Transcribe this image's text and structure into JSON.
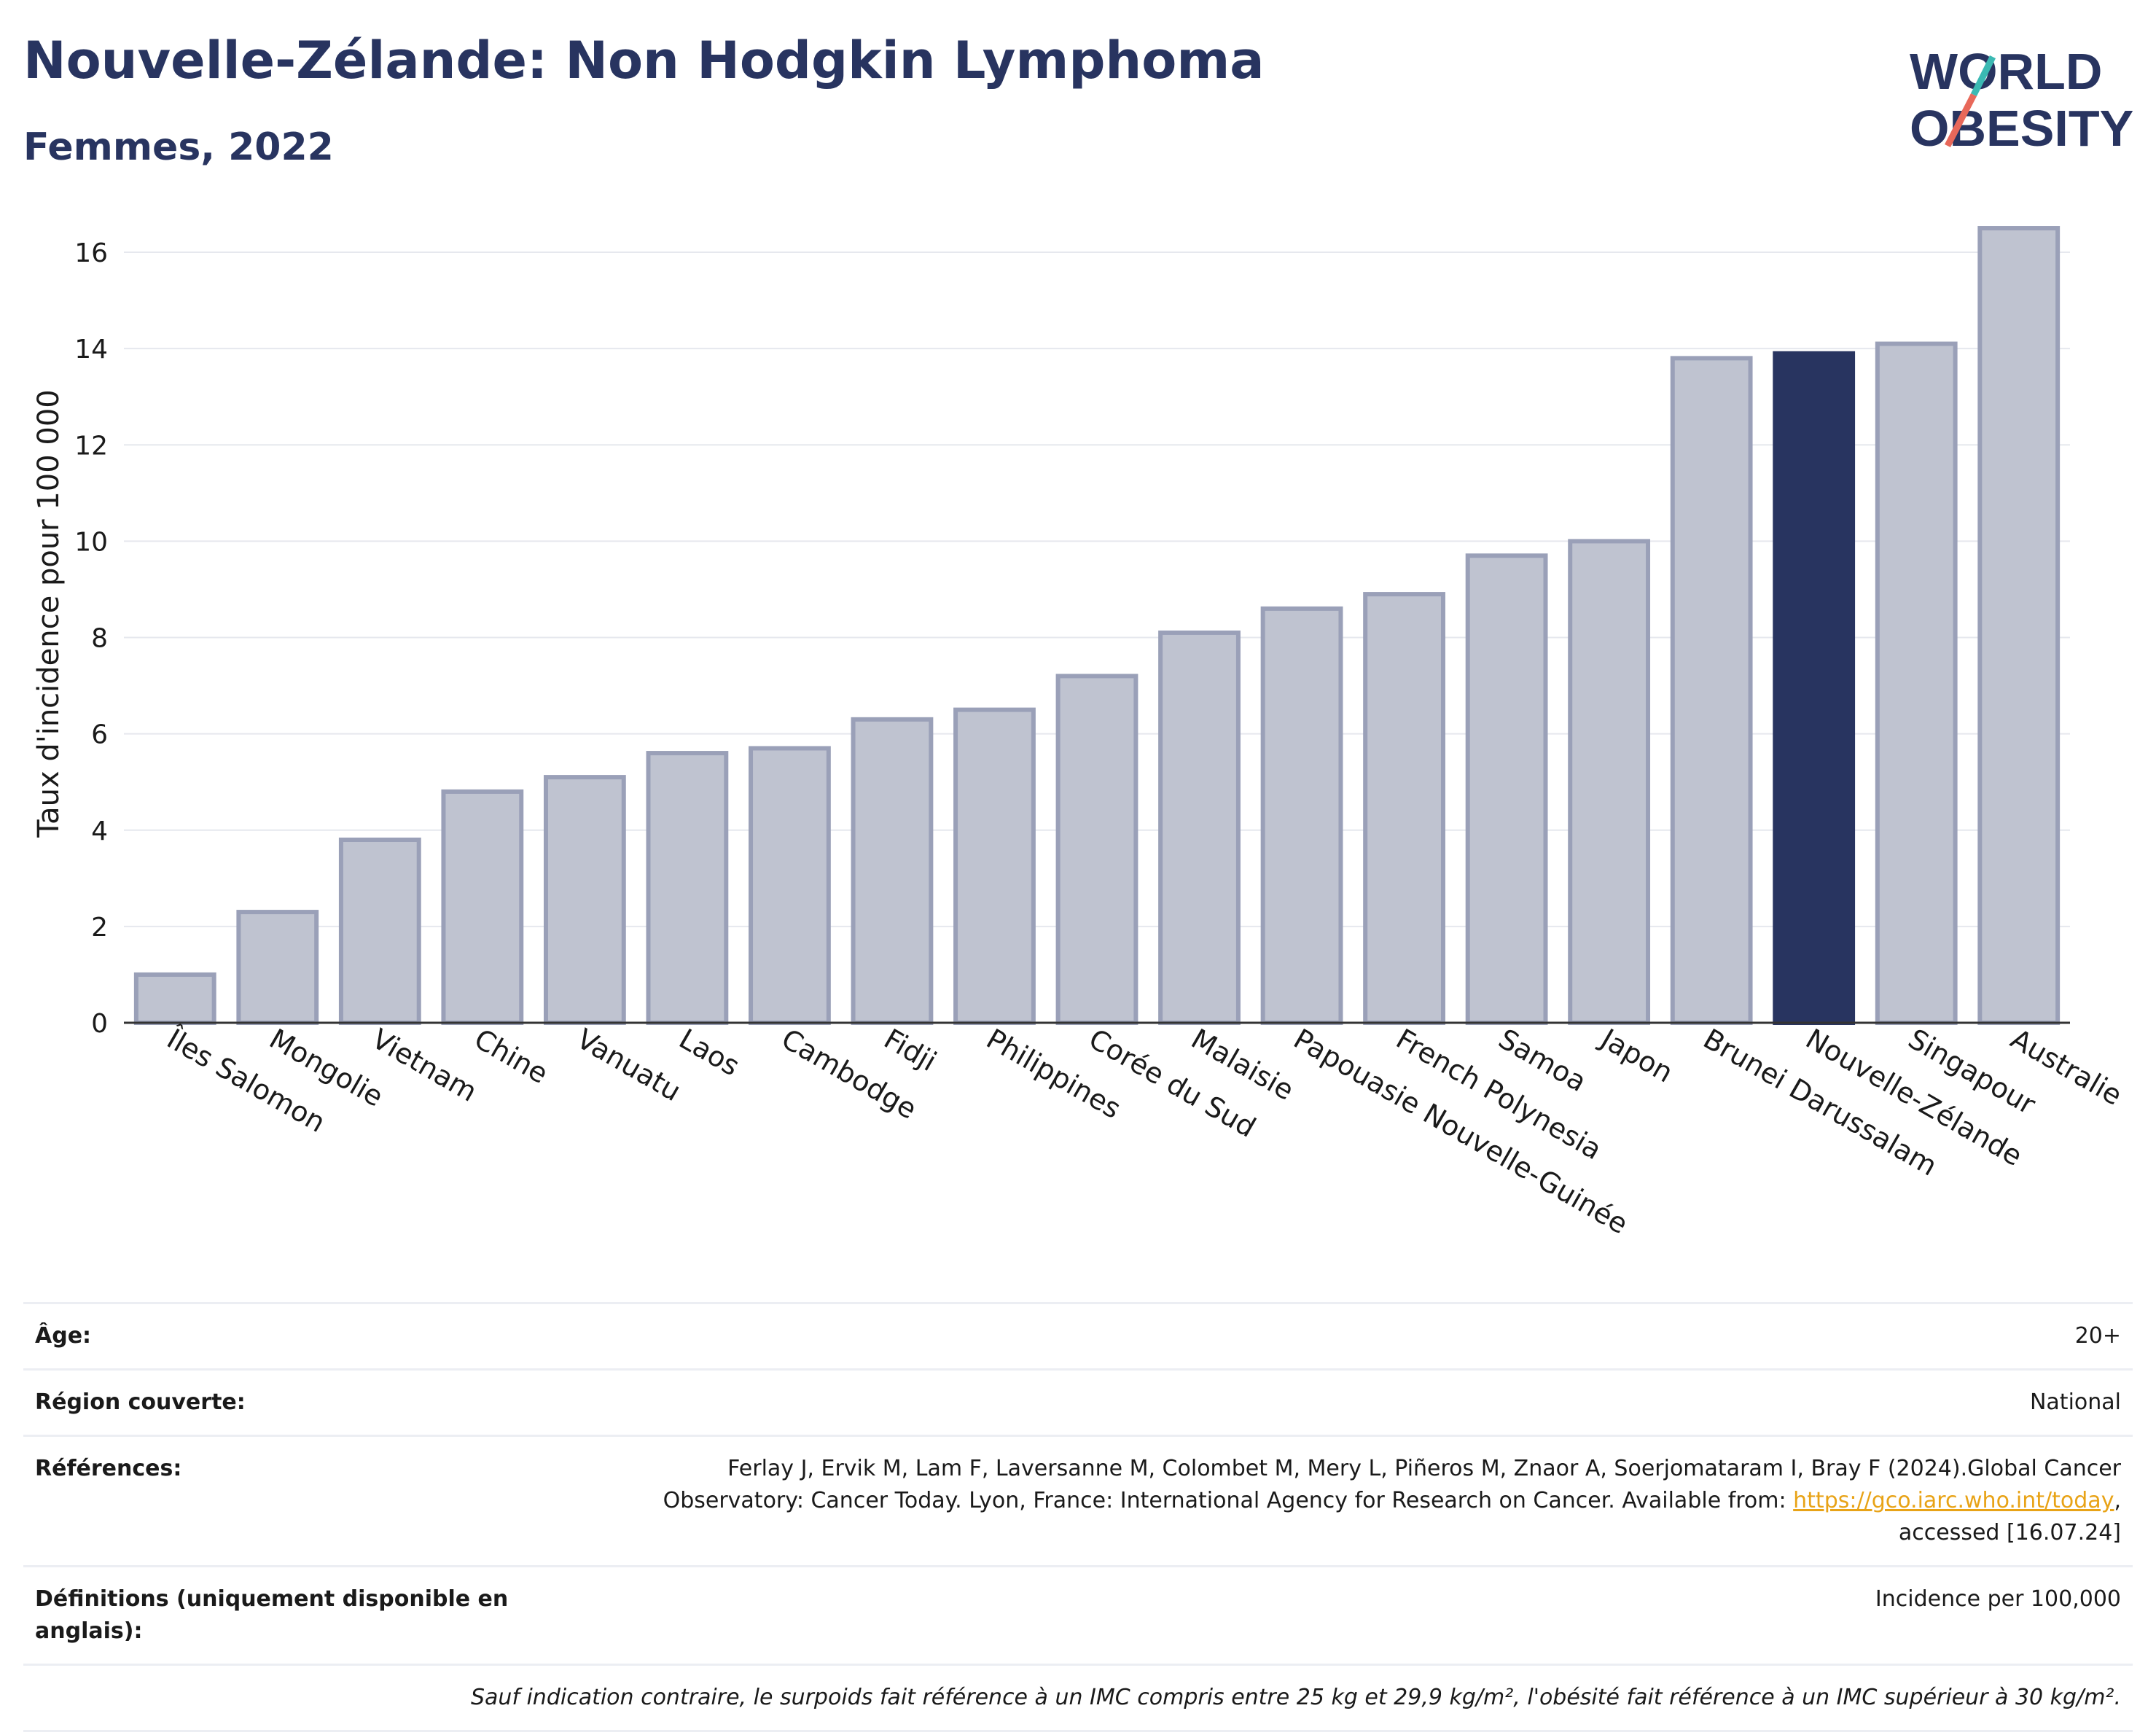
{
  "title": "Nouvelle-Zélande: Non Hodgkin Lymphoma",
  "subtitle": "Femmes, 2022",
  "logo": {
    "line1": "WORLD",
    "line2": "OBESITY",
    "accent_colors": [
      "#3bb9b3",
      "#e8685a"
    ]
  },
  "colors": {
    "bar": "#bfc3d0",
    "bar_stroke": "#9aa0b8",
    "highlight": "#283460",
    "title": "#283460",
    "link": "#e8a317"
  },
  "chart_data": {
    "type": "bar",
    "ylabel": "Taux d'incidence pour 100 000",
    "xlabel": "",
    "ylim": [
      0,
      17
    ],
    "yticks": [
      0,
      2,
      4,
      6,
      8,
      10,
      12,
      14,
      16
    ],
    "grid": true,
    "categories": [
      "Îles Salomon",
      "Mongolie",
      "Vietnam",
      "Chine",
      "Vanuatu",
      "Laos",
      "Cambodge",
      "Fidji",
      "Philippines",
      "Corée du Sud",
      "Malaisie",
      "Papouasie Nouvelle-Guinée",
      "French Polynesia",
      "Samoa",
      "Japon",
      "Brunei Darussalam",
      "Nouvelle-Zélande",
      "Singapour",
      "Australie"
    ],
    "values": [
      1.0,
      2.3,
      3.8,
      4.8,
      5.1,
      5.6,
      5.7,
      6.3,
      6.5,
      7.2,
      8.1,
      8.6,
      8.9,
      9.7,
      10.0,
      13.8,
      13.9,
      14.1,
      16.5
    ],
    "highlight": "Nouvelle-Zélande"
  },
  "info": {
    "age_label": "Âge:",
    "age_value": "20+",
    "region_label": "Région couverte:",
    "region_value": "National",
    "refs_label": "Références:",
    "refs_text1": "Ferlay J, Ervik M, Lam F, Laversanne M, Colombet M, Mery L, Piñeros M, Znaor A, Soerjomataram I, Bray F (2024).Global Cancer",
    "refs_text2": "Observatory: Cancer Today. Lyon, France: International Agency for Research on Cancer. Available from: ",
    "refs_link": "https://gco.iarc.who.int/today",
    "refs_text3": ",",
    "refs_text4": "accessed [16.07.24]",
    "def_label": "Définitions (uniquement disponible en anglais):",
    "def_value": "Incidence per 100,000",
    "note": "Sauf indication contraire, le surpoids fait référence à un IMC compris entre 25 kg et 29,9 kg/m², l'obésité fait référence à un IMC supérieur à 30 kg/m²."
  }
}
